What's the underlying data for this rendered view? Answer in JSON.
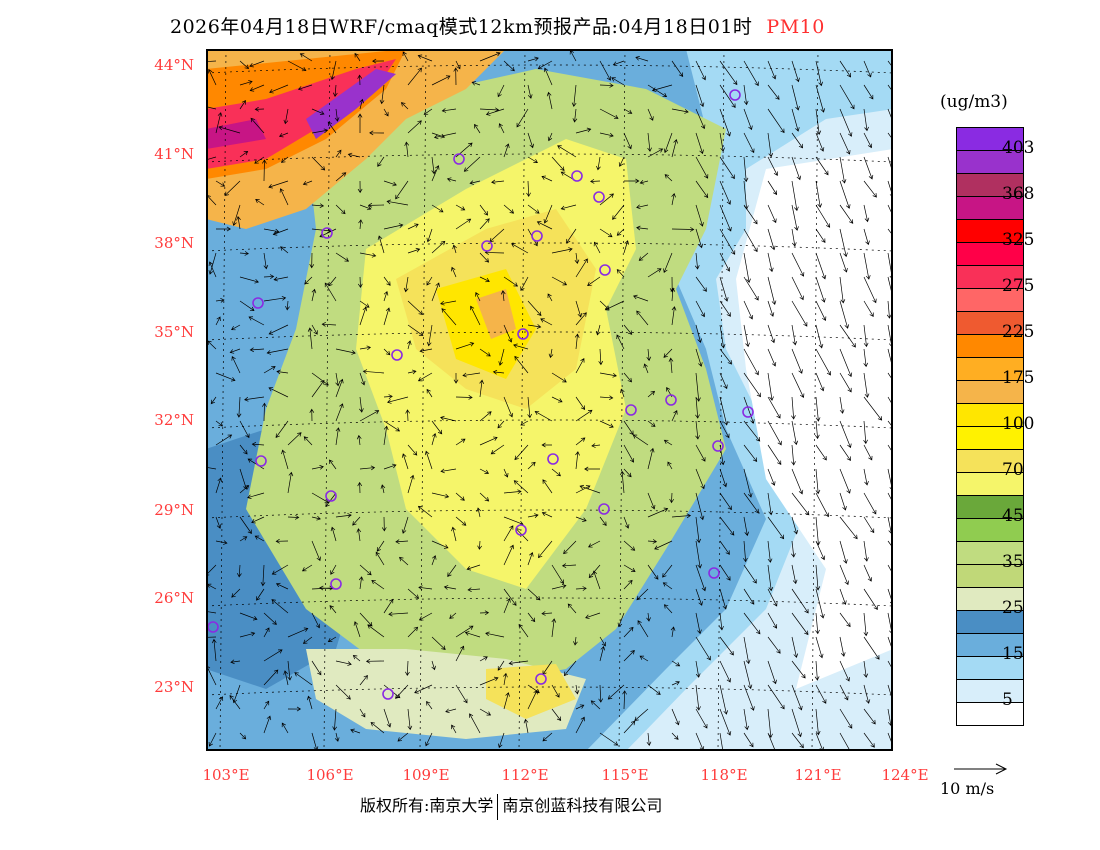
{
  "title": {
    "text": "2026年04月18日WRF/cmaq模式12km预报产品:04月18日01时",
    "pollutant": "PM10"
  },
  "map": {
    "lat_labels": [
      "44°N",
      "41°N",
      "38°N",
      "35°N",
      "32°N",
      "29°N",
      "26°N",
      "23°N"
    ],
    "lon_labels": [
      "103°E",
      "106°E",
      "109°E",
      "112°E",
      "115°E",
      "118°E",
      "121°E",
      "124°E"
    ]
  },
  "legend": {
    "unit": "(ug/m3)",
    "colors": [
      "#8a2be2",
      "#9932cc",
      "#b03060",
      "#c71585",
      "#ff0000",
      "#ff0048",
      "#f93058",
      "#ff6666",
      "#ef5a30",
      "#ff8800",
      "#ffae22",
      "#f5b44a",
      "#ffe600",
      "#fff200",
      "#f5e25a",
      "#f5f56a",
      "#6aa83a",
      "#90cc50",
      "#c0dc80",
      "#c0d878",
      "#e0eac0",
      "#4a8ec4",
      "#6aaedc",
      "#a4daf4",
      "#d8eefa",
      "#ffffff"
    ],
    "labels": [
      "403",
      "368",
      "325",
      "275",
      "225",
      "175",
      "100",
      "70",
      "45",
      "35",
      "25",
      "15",
      "5"
    ]
  },
  "wind_reference": "10 m/s",
  "footer": {
    "left": "版权所有:南京大学",
    "right": "南京创蓝科技有限公司"
  }
}
